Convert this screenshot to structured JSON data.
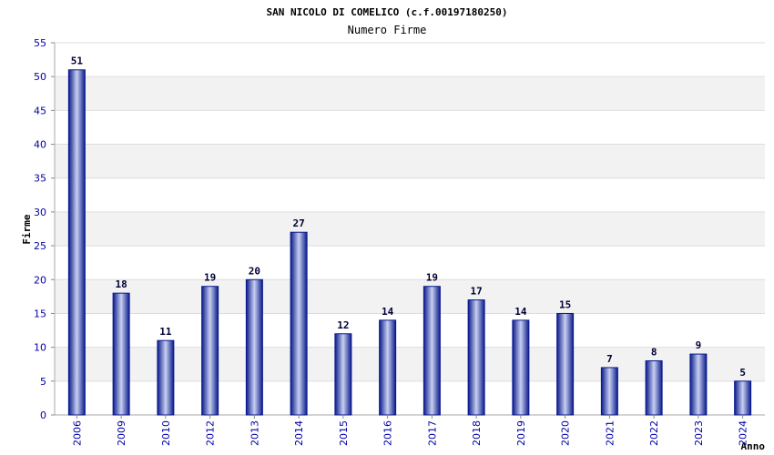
{
  "chart_data": {
    "type": "bar",
    "title": "SAN NICOLO DI COMELICO (c.f.00197180250)",
    "subtitle": "Numero Firme",
    "xlabel": "Anno",
    "ylabel": "Firme",
    "categories": [
      "2006",
      "2009",
      "2010",
      "2012",
      "2013",
      "2014",
      "2015",
      "2016",
      "2017",
      "2018",
      "2019",
      "2020",
      "2021",
      "2022",
      "2023",
      "2024"
    ],
    "values": [
      51,
      18,
      11,
      19,
      20,
      27,
      12,
      14,
      19,
      17,
      14,
      15,
      7,
      8,
      9,
      5
    ],
    "ylim": [
      0,
      55
    ],
    "yticks": [
      0,
      5,
      10,
      15,
      20,
      25,
      30,
      35,
      40,
      45,
      50,
      55
    ],
    "grid": true,
    "legend": "none",
    "colors": {
      "bar_dark": "#0a1a8c",
      "bar_light": "#c8d0f0",
      "band": "#f2f2f2",
      "gridline": "#dddddd",
      "tick_text": "#0000aa",
      "data_label": "#000033"
    }
  }
}
